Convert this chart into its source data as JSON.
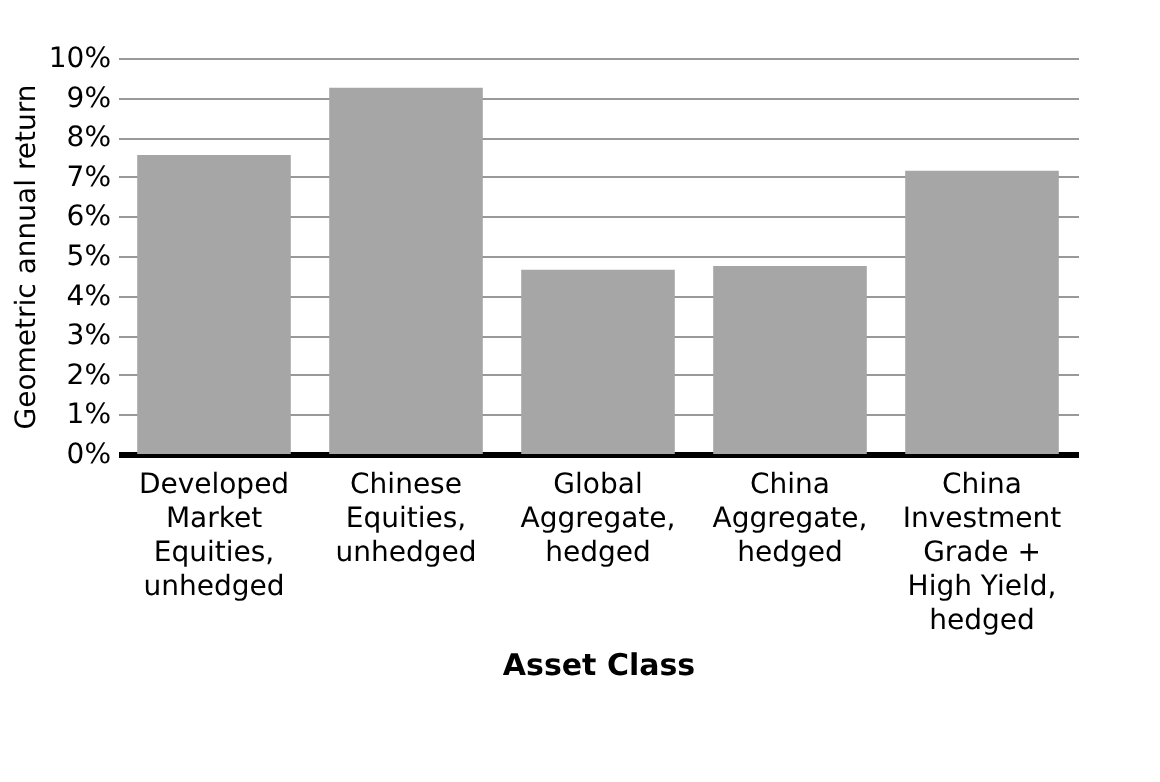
{
  "chart_data": {
    "type": "bar",
    "xlabel": "Asset Class",
    "ylabel": "Geometric annual return",
    "categories": [
      "Developed Market Equities, unhedged",
      "Chinese Equities, unhedged",
      "Global Aggregate, hedged",
      "China Aggregate, hedged",
      "China Investment Grade + High Yield, hedged"
    ],
    "values": [
      7.55,
      9.25,
      4.65,
      4.75,
      7.15
    ],
    "color": "#a6a6a6",
    "ylim": [
      0,
      10
    ],
    "yticks": [
      {
        "value": 0,
        "label": "0%"
      },
      {
        "value": 1,
        "label": "1%"
      },
      {
        "value": 2,
        "label": "2%"
      },
      {
        "value": 3,
        "label": "3%"
      },
      {
        "value": 4,
        "label": "4%"
      },
      {
        "value": 5,
        "label": "5%"
      },
      {
        "value": 6,
        "label": "6%"
      },
      {
        "value": 7,
        "label": "7%"
      },
      {
        "value": 8,
        "label": "8%"
      },
      {
        "value": 9,
        "label": "9%"
      },
      {
        "value": 10,
        "label": "10%"
      }
    ],
    "grid": "y"
  }
}
